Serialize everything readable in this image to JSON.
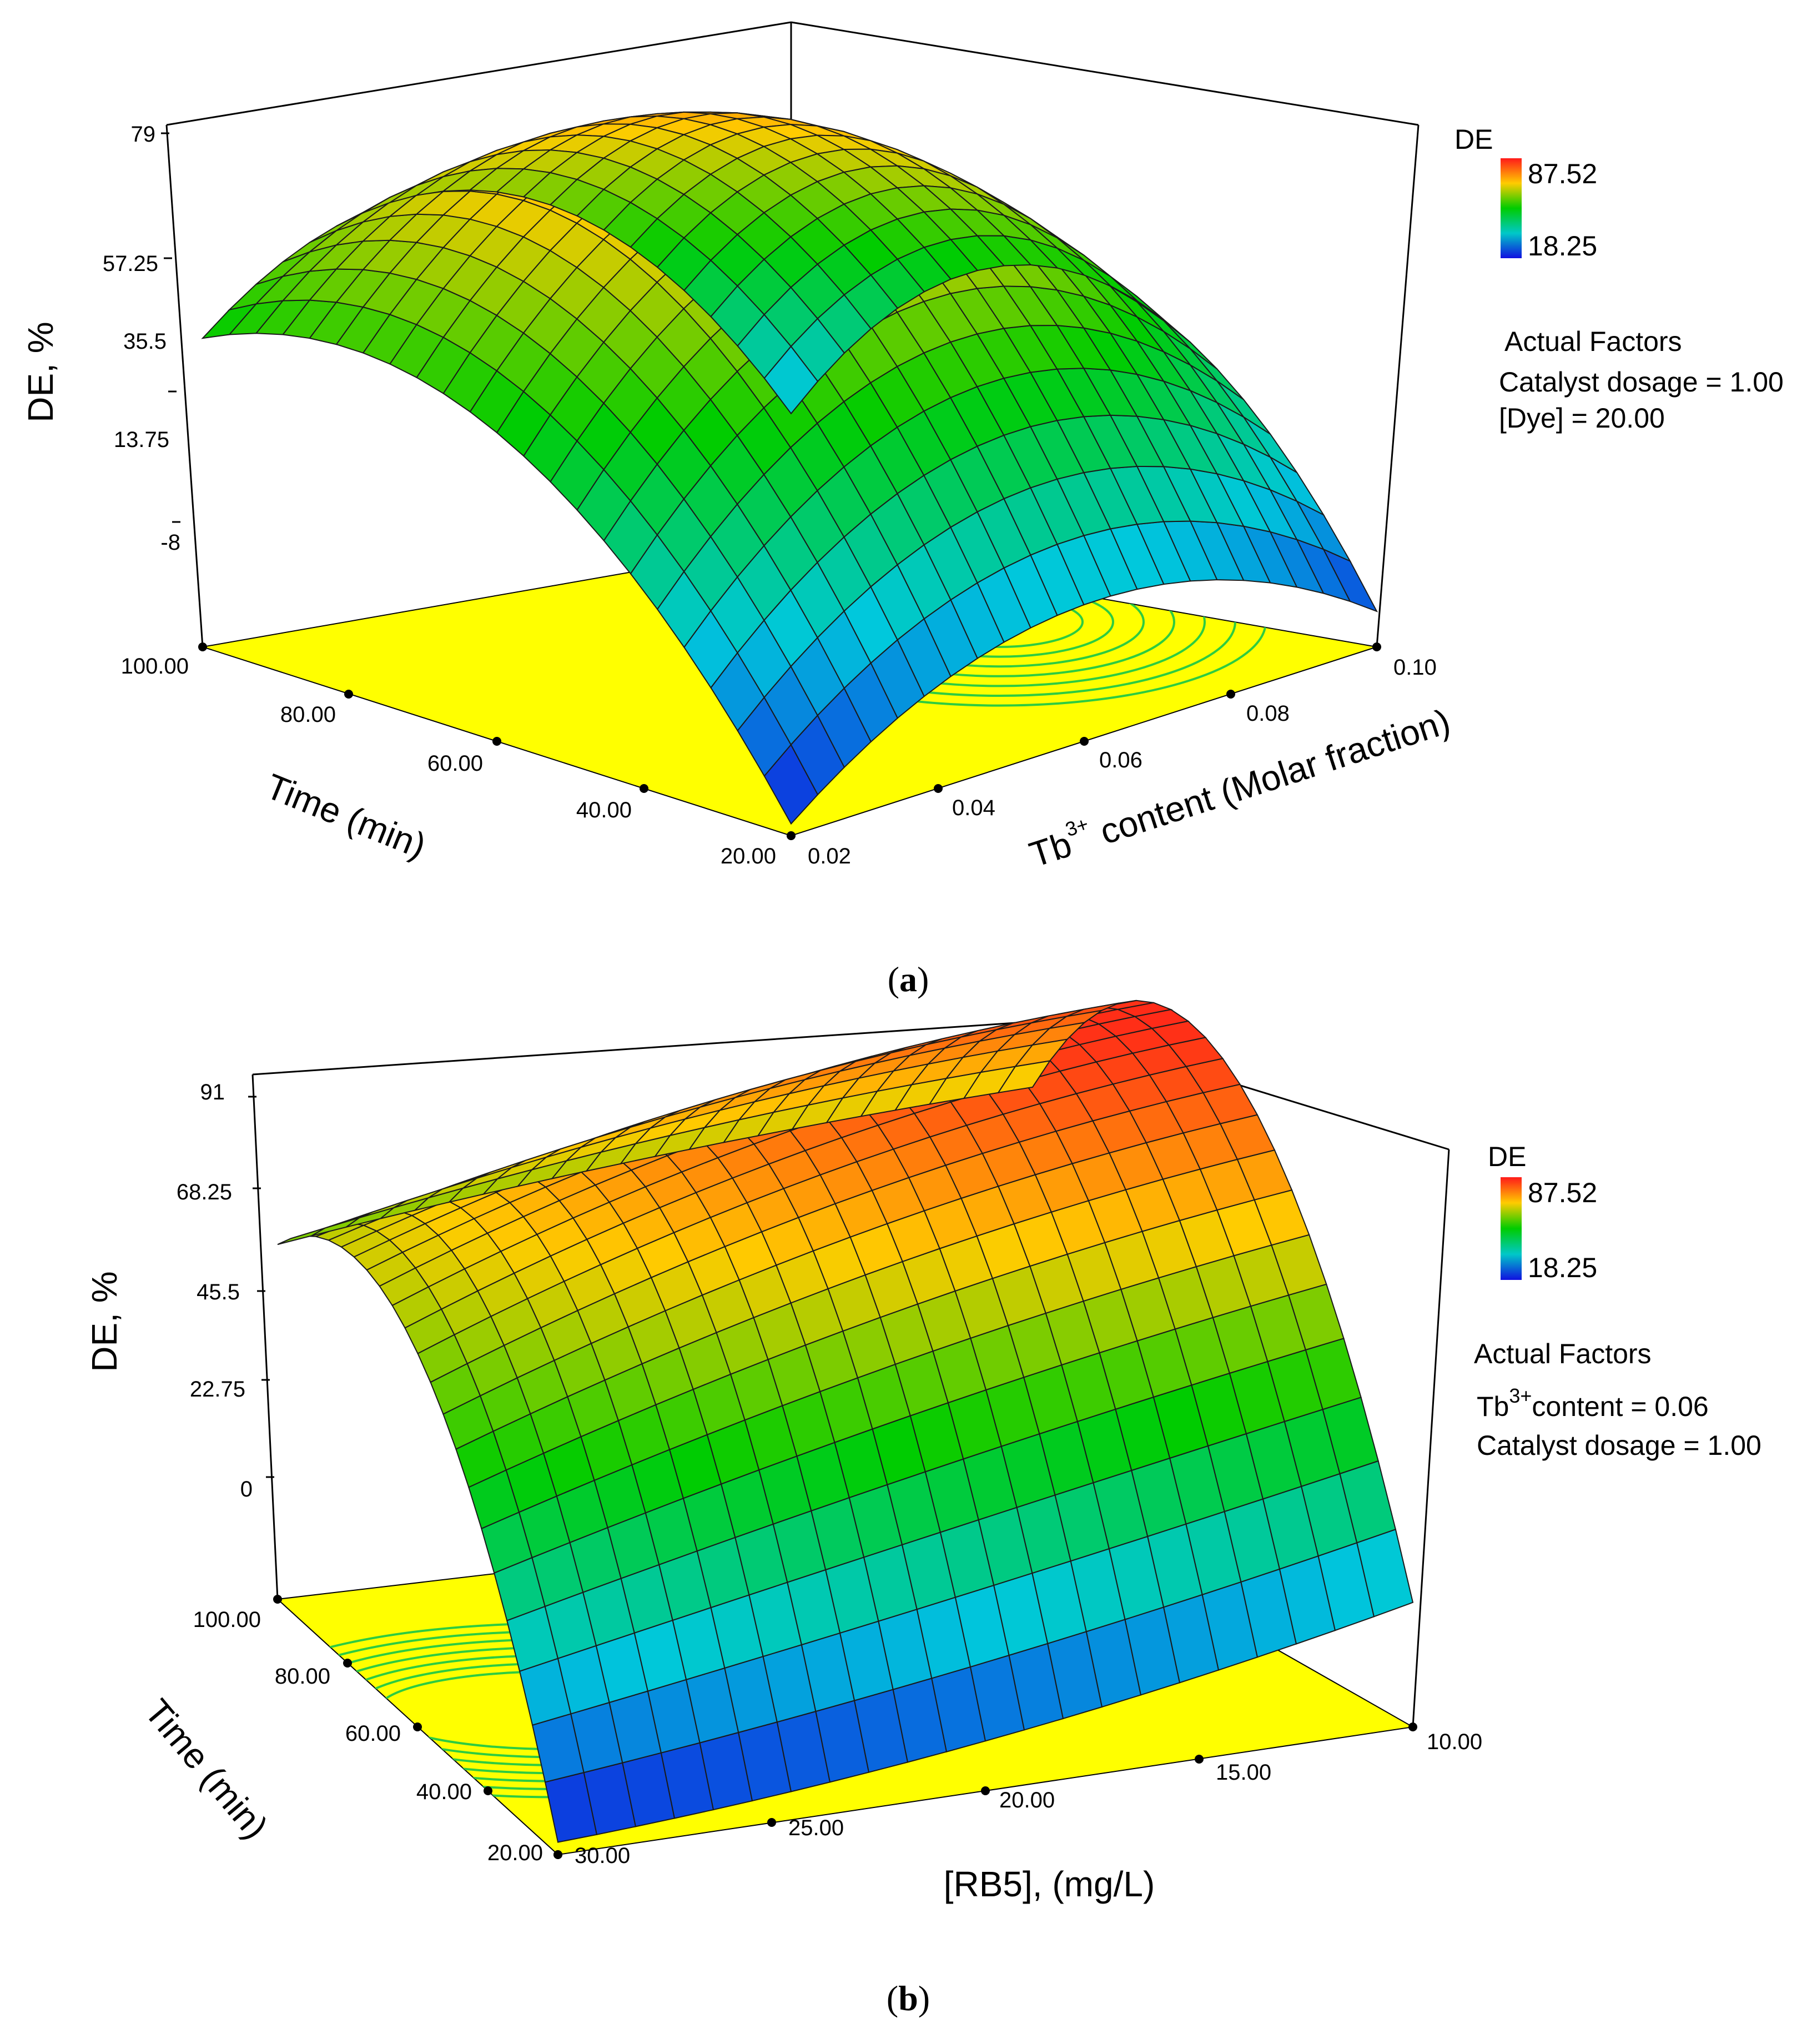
{
  "figure": {
    "colors": {
      "high": "#ff2020",
      "mid": "#00cc00",
      "low": "#1010e0",
      "floor": "#ffff00",
      "contour": "#2ecc40",
      "legend_high_text": "#ff2020",
      "legend_low_text": "#2020ff"
    }
  },
  "chart_data": [
    {
      "type": "surface3d",
      "panel_caption": {
        "open": "(",
        "letter": "a",
        "close": ")"
      },
      "zlabel": "DE, %",
      "xlabel": "Time (min)",
      "ylabel": {
        "base": "Tb",
        "sup": "3+",
        "rest": " content (Molar fraction)"
      },
      "z_ticks": [
        "79",
        "57.25",
        "35.5",
        "13.75",
        "-8"
      ],
      "zlim": [
        -8,
        79
      ],
      "x_ticks": [
        "100.00",
        "80.00",
        "60.00",
        "40.00",
        "20.00"
      ],
      "xlim": [
        20,
        100
      ],
      "y_ticks": [
        "0.02",
        "0.04",
        "0.06",
        "0.08",
        "0.10"
      ],
      "ylim": [
        0.02,
        0.1
      ],
      "legend": {
        "title": "DE",
        "max": "87.52",
        "min": "18.25"
      },
      "actual_factors": {
        "title": "Actual Factors",
        "line1": "Catalyst dosage = 1.00",
        "line2": "[Dye] = 20.00"
      },
      "surface_samples": {
        "x": [
          20,
          60,
          100
        ],
        "y": [
          0.02,
          0.06,
          0.1
        ],
        "z": [
          [
            -6,
            15,
            -2
          ],
          [
            44,
            78,
            46
          ],
          [
            44,
            60,
            14
          ]
        ]
      }
    },
    {
      "type": "surface3d",
      "panel_caption": {
        "open": "(",
        "letter": "b",
        "close": ")"
      },
      "zlabel": "DE, %",
      "xlabel": "Time (min)",
      "ylabel": {
        "base": "[RB5], (mg/L)"
      },
      "z_ticks": [
        "91",
        "68.25",
        "45.5",
        "22.75",
        "0"
      ],
      "zlim": [
        0,
        91
      ],
      "x_ticks": [
        "100.00",
        "80.00",
        "60.00",
        "40.00",
        "20.00"
      ],
      "xlim": [
        20,
        100
      ],
      "y_ticks": [
        "30.00",
        "25.00",
        "20.00",
        "15.00",
        "10.00"
      ],
      "ylim": [
        10,
        30
      ],
      "legend": {
        "title": "DE",
        "max": "87.52",
        "min": "18.25"
      },
      "actual_factors": {
        "title": "Actual Factors",
        "line1_base": "Tb",
        "line1_sup": "3+",
        "line1_rest": "content = 0.06",
        "line2": "Catalyst dosage = 1.00"
      },
      "surface_samples": {
        "x": [
          20,
          60,
          100
        ],
        "y": [
          30,
          20,
          10
        ],
        "z": [
          [
            2,
            8,
            20
          ],
          [
            60,
            80,
            90
          ],
          [
            57,
            64,
            68
          ]
        ]
      }
    }
  ]
}
